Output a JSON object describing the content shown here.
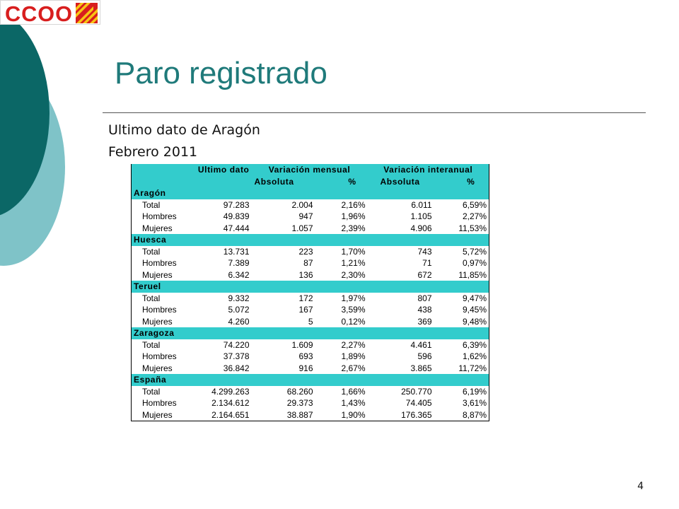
{
  "logo": {
    "text": "CCOO",
    "colors": {
      "red": "#d81e1e",
      "yellow": "#f7c515"
    }
  },
  "decor": {
    "colors": {
      "dark_teal": "#0b6766",
      "light_teal": "#7fc3c8"
    }
  },
  "title": "Paro registrado",
  "subtitle_line1": "Ultimo dato de Aragón",
  "subtitle_line2": "Febrero 2011",
  "table": {
    "header": {
      "ultimo_dato": "Ultimo dato",
      "variacion_mensual": "Variación mensual",
      "variacion_interanual": "Variación interanual",
      "absoluta": "Absoluta",
      "pct": "%"
    },
    "groups": [
      {
        "name": "Aragón",
        "rows": [
          {
            "label": "Total",
            "ultimo": "97.283",
            "vm_abs": "2.004",
            "vm_pct": "2,16%",
            "vi_abs": "6.011",
            "vi_pct": "6,59%"
          },
          {
            "label": "Hombres",
            "ultimo": "49.839",
            "vm_abs": "947",
            "vm_pct": "1,96%",
            "vi_abs": "1.105",
            "vi_pct": "2,27%"
          },
          {
            "label": "Mujeres",
            "ultimo": "47.444",
            "vm_abs": "1.057",
            "vm_pct": "2,39%",
            "vi_abs": "4.906",
            "vi_pct": "11,53%"
          }
        ]
      },
      {
        "name": "Huesca",
        "rows": [
          {
            "label": "Total",
            "ultimo": "13.731",
            "vm_abs": "223",
            "vm_pct": "1,70%",
            "vi_abs": "743",
            "vi_pct": "5,72%"
          },
          {
            "label": "Hombres",
            "ultimo": "7.389",
            "vm_abs": "87",
            "vm_pct": "1,21%",
            "vi_abs": "71",
            "vi_pct": "0,97%"
          },
          {
            "label": "Mujeres",
            "ultimo": "6.342",
            "vm_abs": "136",
            "vm_pct": "2,30%",
            "vi_abs": "672",
            "vi_pct": "11,85%"
          }
        ]
      },
      {
        "name": "Teruel",
        "rows": [
          {
            "label": "Total",
            "ultimo": "9.332",
            "vm_abs": "172",
            "vm_pct": "1,97%",
            "vi_abs": "807",
            "vi_pct": "9,47%"
          },
          {
            "label": "Hombres",
            "ultimo": "5.072",
            "vm_abs": "167",
            "vm_pct": "3,59%",
            "vi_abs": "438",
            "vi_pct": "9,45%"
          },
          {
            "label": "Mujeres",
            "ultimo": "4.260",
            "vm_abs": "5",
            "vm_pct": "0,12%",
            "vi_abs": "369",
            "vi_pct": "9,48%"
          }
        ]
      },
      {
        "name": "Zaragoza",
        "rows": [
          {
            "label": "Total",
            "ultimo": "74.220",
            "vm_abs": "1.609",
            "vm_pct": "2,27%",
            "vi_abs": "4.461",
            "vi_pct": "6,39%"
          },
          {
            "label": "Hombres",
            "ultimo": "37.378",
            "vm_abs": "693",
            "vm_pct": "1,89%",
            "vi_abs": "596",
            "vi_pct": "1,62%"
          },
          {
            "label": "Mujeres",
            "ultimo": "36.842",
            "vm_abs": "916",
            "vm_pct": "2,67%",
            "vi_abs": "3.865",
            "vi_pct": "11,72%"
          }
        ]
      },
      {
        "name": "España",
        "rows": [
          {
            "label": "Total",
            "ultimo": "4.299.263",
            "vm_abs": "68.260",
            "vm_pct": "1,66%",
            "vi_abs": "250.770",
            "vi_pct": "6,19%"
          },
          {
            "label": "Hombres",
            "ultimo": "2.134.612",
            "vm_abs": "29.373",
            "vm_pct": "1,43%",
            "vi_abs": "74.405",
            "vi_pct": "3,61%"
          },
          {
            "label": "Mujeres",
            "ultimo": "2.164.651",
            "vm_abs": "38.887",
            "vm_pct": "1,90%",
            "vi_abs": "176.365",
            "vi_pct": "8,87%"
          }
        ]
      }
    ]
  },
  "page_number": "4"
}
